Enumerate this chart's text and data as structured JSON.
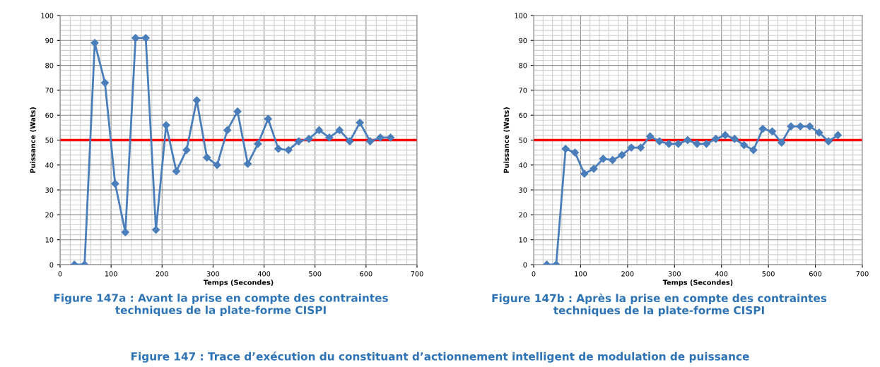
{
  "chart_data": [
    {
      "type": "line",
      "xlabel": "Temps (Secondes)",
      "ylabel": "Puissance (Wats)",
      "x": [
        28,
        48,
        68,
        88,
        108,
        128,
        148,
        168,
        188,
        208,
        228,
        248,
        268,
        288,
        308,
        328,
        348,
        368,
        388,
        408,
        428,
        448,
        468,
        488,
        508,
        528,
        548,
        568,
        588,
        608,
        628,
        648
      ],
      "series": [
        {
          "color": "#4a7ebb",
          "values": [
            0,
            0,
            89,
            73,
            32.5,
            13,
            91,
            91,
            14,
            56,
            37.5,
            46,
            66,
            43,
            40,
            54,
            61.5,
            40.5,
            48.5,
            58.5,
            46.5,
            46,
            49.5,
            50.5,
            54,
            51,
            54,
            49.5,
            57,
            49.5,
            51,
            51
          ]
        }
      ],
      "marker": "diamond",
      "line_style": "solid",
      "grid": true,
      "xlim": [
        0,
        700
      ],
      "ylim": [
        0,
        100
      ],
      "xticks": [
        0,
        {
          "value": 20,
          "label": null
        },
        {
          "value": 40,
          "label": null
        },
        {
          "value": 60,
          "label": null
        },
        {
          "value": 80,
          "label": null
        },
        100,
        {
          "value": 120,
          "label": null
        },
        {
          "value": 140,
          "label": null
        },
        {
          "value": 160,
          "label": null
        },
        {
          "value": 180,
          "label": null
        },
        200,
        {
          "value": 220,
          "label": null
        },
        {
          "value": 240,
          "label": null
        },
        {
          "value": 260,
          "label": null
        },
        {
          "value": 280,
          "label": null
        },
        300,
        {
          "value": 320,
          "label": null
        },
        {
          "value": 340,
          "label": null
        },
        {
          "value": 360,
          "label": null
        },
        {
          "value": 380,
          "label": null
        },
        400,
        {
          "value": 420,
          "label": null
        },
        {
          "value": 440,
          "label": null
        },
        {
          "value": 460,
          "label": null
        },
        {
          "value": 480,
          "label": null
        },
        500,
        {
          "value": 520,
          "label": null
        },
        {
          "value": 540,
          "label": null
        },
        {
          "value": 560,
          "label": null
        },
        {
          "value": 580,
          "label": null
        },
        600,
        {
          "value": 620,
          "label": null
        },
        {
          "value": 640,
          "label": null
        },
        {
          "value": 660,
          "label": null
        },
        {
          "value": 680,
          "label": null
        },
        700
      ],
      "yticks": [
        0,
        {
          "value": 2,
          "label": null
        },
        {
          "value": 4,
          "label": null
        },
        {
          "value": 6,
          "label": null
        },
        {
          "value": 8,
          "label": null
        },
        10,
        {
          "value": 12,
          "label": null
        },
        {
          "value": 14,
          "label": null
        },
        {
          "value": 16,
          "label": null
        },
        {
          "value": 18,
          "label": null
        },
        20,
        {
          "value": 22,
          "label": null
        },
        {
          "value": 24,
          "label": null
        },
        {
          "value": 26,
          "label": null
        },
        {
          "value": 28,
          "label": null
        },
        30,
        {
          "value": 32,
          "label": null
        },
        {
          "value": 34,
          "label": null
        },
        {
          "value": 36,
          "label": null
        },
        {
          "value": 38,
          "label": null
        },
        40,
        {
          "value": 42,
          "label": null
        },
        {
          "value": 44,
          "label": null
        },
        {
          "value": 46,
          "label": null
        },
        {
          "value": 48,
          "label": null
        },
        50,
        {
          "value": 52,
          "label": null
        },
        {
          "value": 54,
          "label": null
        },
        {
          "value": 56,
          "label": null
        },
        {
          "value": 58,
          "label": null
        },
        60,
        {
          "value": 62,
          "label": null
        },
        {
          "value": 64,
          "label": null
        },
        {
          "value": 66,
          "label": null
        },
        {
          "value": 68,
          "label": null
        },
        70,
        {
          "value": 72,
          "label": null
        },
        {
          "value": 74,
          "label": null
        },
        {
          "value": 76,
          "label": null
        },
        {
          "value": 78,
          "label": null
        },
        80,
        {
          "value": 82,
          "label": null
        },
        {
          "value": 84,
          "label": null
        },
        {
          "value": 86,
          "label": null
        },
        {
          "value": 88,
          "label": null
        },
        90,
        {
          "value": 92,
          "label": null
        },
        {
          "value": 94,
          "label": null
        },
        {
          "value": 96,
          "label": null
        },
        {
          "value": 98,
          "label": null
        },
        100
      ],
      "ref_lines": [
        {
          "axis": "y",
          "value": 50,
          "color": "#ff0000"
        }
      ],
      "annotations": [
        "Figure 147a : Avant la prise en compte des contraintes\ntechniques de la plate-forme CISPI",
        "Figure 147 : Trace d’exécution du constituant d’actionnement intelligent de modulation de puissance"
      ]
    },
    {
      "type": "line",
      "xlabel": "Temps (Secondes)",
      "ylabel": "Puissance (Wats)",
      "x": [
        28,
        48,
        68,
        88,
        108,
        128,
        148,
        168,
        188,
        208,
        228,
        248,
        268,
        288,
        308,
        328,
        348,
        368,
        388,
        408,
        428,
        448,
        468,
        488,
        508,
        528,
        548,
        568,
        588,
        608,
        628,
        648
      ],
      "series": [
        {
          "color": "#4a7ebb",
          "values": [
            0,
            0,
            46.5,
            45,
            36.5,
            38.5,
            42.5,
            42,
            44,
            47,
            47,
            51.5,
            49.5,
            48.5,
            48.5,
            50,
            48.5,
            48.5,
            50.5,
            52,
            50.5,
            48,
            46,
            54.5,
            53.5,
            49,
            55.5,
            55.5,
            55.5,
            53,
            49.5,
            52
          ]
        }
      ],
      "marker": "diamond",
      "line_style": "solid",
      "grid": true,
      "xlim": [
        0,
        700
      ],
      "ylim": [
        0,
        100
      ],
      "xticks": [
        0,
        {
          "value": 20,
          "label": null
        },
        {
          "value": 40,
          "label": null
        },
        {
          "value": 60,
          "label": null
        },
        {
          "value": 80,
          "label": null
        },
        100,
        {
          "value": 120,
          "label": null
        },
        {
          "value": 140,
          "label": null
        },
        {
          "value": 160,
          "label": null
        },
        {
          "value": 180,
          "label": null
        },
        200,
        {
          "value": 220,
          "label": null
        },
        {
          "value": 240,
          "label": null
        },
        {
          "value": 260,
          "label": null
        },
        {
          "value": 280,
          "label": null
        },
        300,
        {
          "value": 320,
          "label": null
        },
        {
          "value": 340,
          "label": null
        },
        {
          "value": 360,
          "label": null
        },
        {
          "value": 380,
          "label": null
        },
        400,
        {
          "value": 420,
          "label": null
        },
        {
          "value": 440,
          "label": null
        },
        {
          "value": 460,
          "label": null
        },
        {
          "value": 480,
          "label": null
        },
        500,
        {
          "value": 520,
          "label": null
        },
        {
          "value": 540,
          "label": null
        },
        {
          "value": 560,
          "label": null
        },
        {
          "value": 580,
          "label": null
        },
        600,
        {
          "value": 620,
          "label": null
        },
        {
          "value": 640,
          "label": null
        },
        {
          "value": 660,
          "label": null
        },
        {
          "value": 680,
          "label": null
        },
        700
      ],
      "yticks": [
        0,
        {
          "value": 2,
          "label": null
        },
        {
          "value": 4,
          "label": null
        },
        {
          "value": 6,
          "label": null
        },
        {
          "value": 8,
          "label": null
        },
        10,
        {
          "value": 12,
          "label": null
        },
        {
          "value": 14,
          "label": null
        },
        {
          "value": 16,
          "label": null
        },
        {
          "value": 18,
          "label": null
        },
        20,
        {
          "value": 22,
          "label": null
        },
        {
          "value": 24,
          "label": null
        },
        {
          "value": 26,
          "label": null
        },
        {
          "value": 28,
          "label": null
        },
        30,
        {
          "value": 32,
          "label": null
        },
        {
          "value": 34,
          "label": null
        },
        {
          "value": 36,
          "label": null
        },
        {
          "value": 38,
          "label": null
        },
        40,
        {
          "value": 42,
          "label": null
        },
        {
          "value": 44,
          "label": null
        },
        {
          "value": 46,
          "label": null
        },
        {
          "value": 48,
          "label": null
        },
        50,
        {
          "value": 52,
          "label": null
        },
        {
          "value": 54,
          "label": null
        },
        {
          "value": 56,
          "label": null
        },
        {
          "value": 58,
          "label": null
        },
        60,
        {
          "value": 62,
          "label": null
        },
        {
          "value": 64,
          "label": null
        },
        {
          "value": 66,
          "label": null
        },
        {
          "value": 68,
          "label": null
        },
        70,
        {
          "value": 72,
          "label": null
        },
        {
          "value": 74,
          "label": null
        },
        {
          "value": 76,
          "label": null
        },
        {
          "value": 78,
          "label": null
        },
        80,
        {
          "value": 82,
          "label": null
        },
        {
          "value": 84,
          "label": null
        },
        {
          "value": 86,
          "label": null
        },
        {
          "value": 88,
          "label": null
        },
        90,
        {
          "value": 92,
          "label": null
        },
        {
          "value": 94,
          "label": null
        },
        {
          "value": 96,
          "label": null
        },
        {
          "value": 98,
          "label": null
        },
        100
      ],
      "ref_lines": [
        {
          "axis": "y",
          "value": 50,
          "color": "#ff0000"
        }
      ],
      "annotations": [
        "Figure 147b : Après la prise en compte des contraintes\ntechniques de la plate-forme CISPI"
      ]
    }
  ]
}
